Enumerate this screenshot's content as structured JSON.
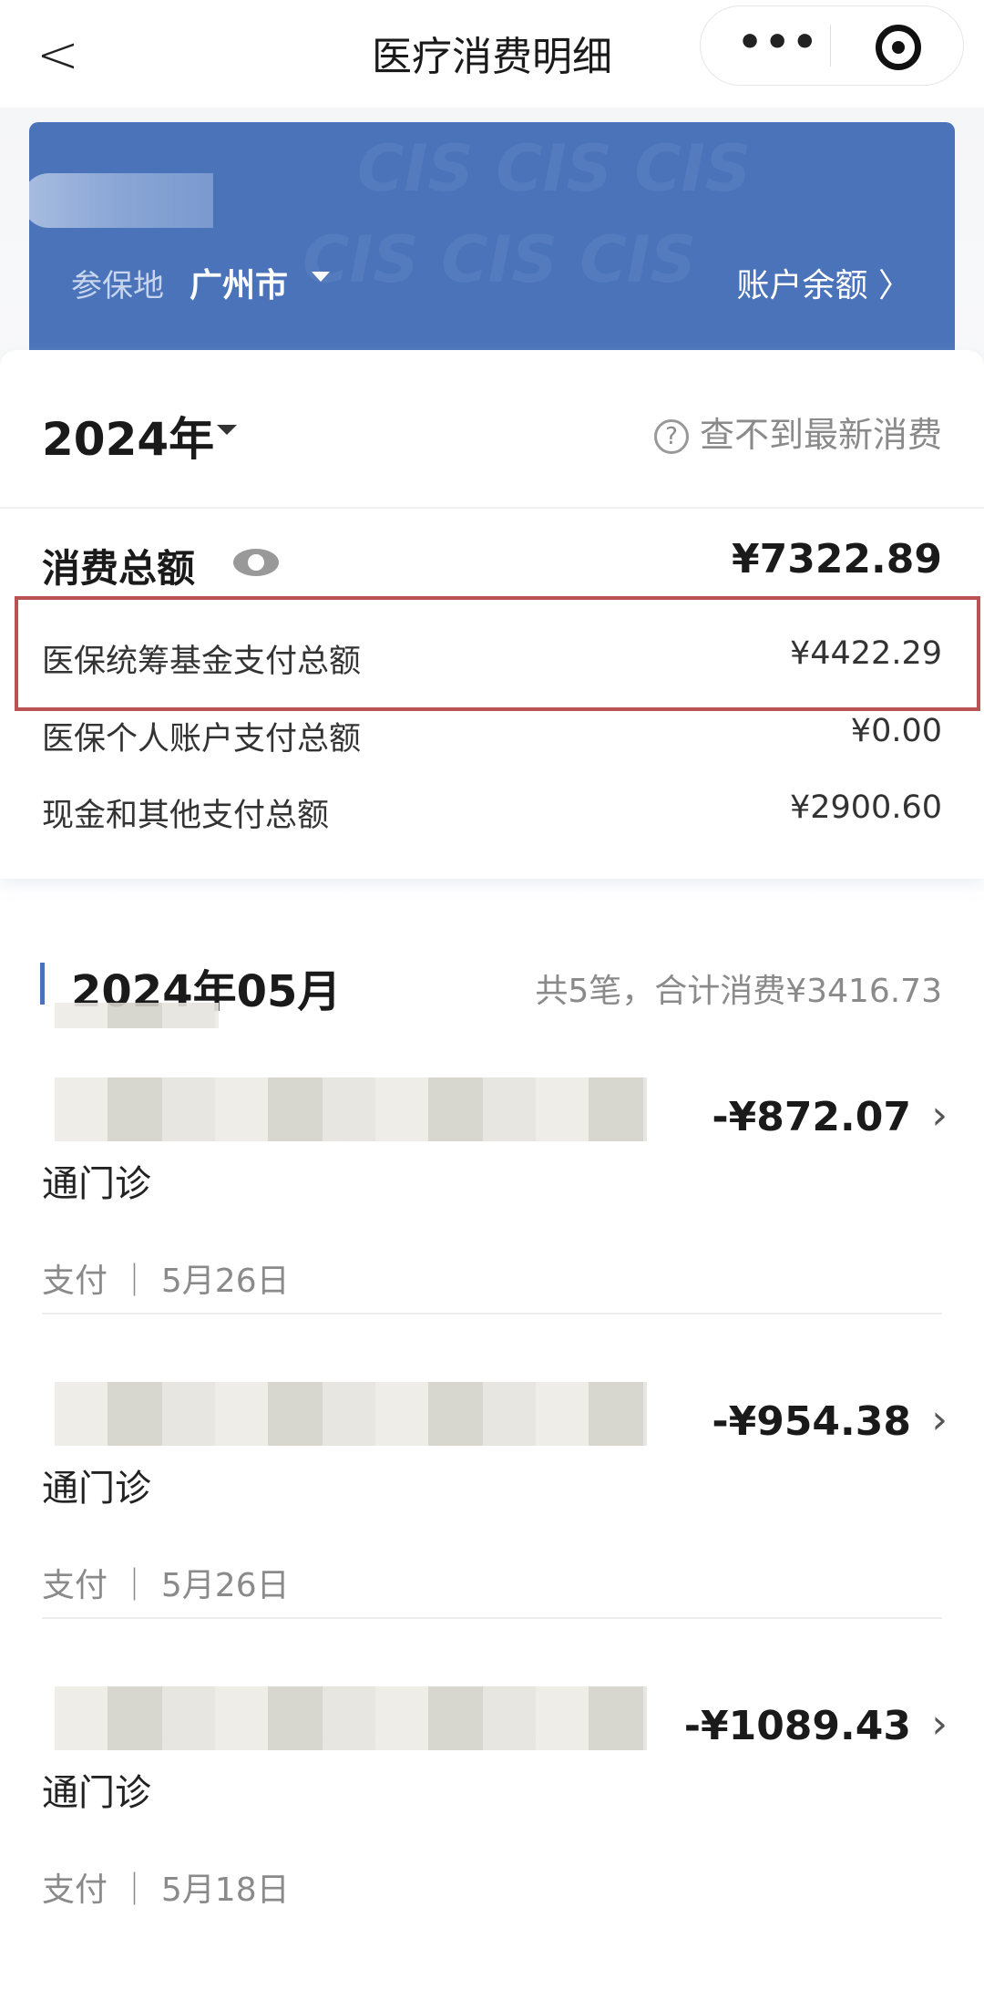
{
  "nav": {
    "title": "医疗消费明细",
    "back_icon": "chevron-left-icon",
    "more_icon": "more-dots-icon",
    "target_icon": "record-target-icon"
  },
  "card": {
    "location_label": "参保地",
    "city": "广州市",
    "balance_link": "账户余额 〉",
    "brand_color": "#4a73ba"
  },
  "summary": {
    "year": "2024年",
    "help_text": "查不到最新消费",
    "total_label": "消费总额",
    "total_value": "¥7322.89",
    "rows": [
      {
        "label": "医保统筹基金支付总额",
        "value": "¥4422.29",
        "highlighted": true
      },
      {
        "label": "医保个人账户支付总额",
        "value": "¥0.00"
      },
      {
        "label": "现金和其他支付总额",
        "value": "¥2900.60"
      }
    ]
  },
  "month": {
    "title": "2024年05月",
    "summary": "共5笔，合计消费¥3416.73"
  },
  "items": [
    {
      "amount": "-¥872.07",
      "name_tail": "通门诊",
      "type": "支付",
      "date": "5月26日"
    },
    {
      "amount": "-¥954.38",
      "name_tail": "通门诊",
      "type": "支付",
      "date": "5月26日"
    },
    {
      "amount": "-¥1089.43",
      "name_tail": "通门诊",
      "type": "支付",
      "date": "5月18日"
    }
  ]
}
